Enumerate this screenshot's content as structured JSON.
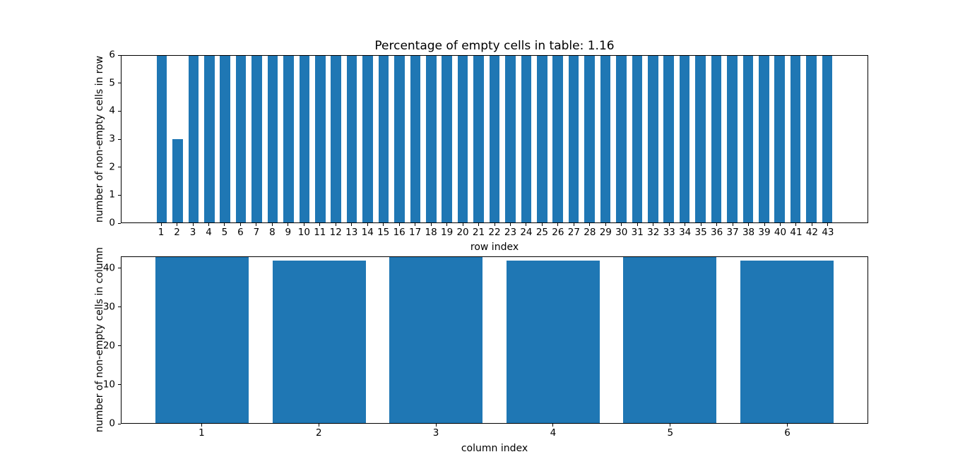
{
  "figure": {
    "background": "#ffffff",
    "bar_color": "#1f77b4",
    "axis_color": "#000000",
    "text_color": "#000000"
  },
  "chart_data": [
    {
      "type": "bar",
      "title": "Percentage of empty cells in table: 1.16",
      "xlabel": "row index",
      "ylabel": "number of non-empty cells in row",
      "categories": [
        "1",
        "2",
        "3",
        "4",
        "5",
        "6",
        "7",
        "8",
        "9",
        "10",
        "11",
        "12",
        "13",
        "14",
        "15",
        "16",
        "17",
        "18",
        "19",
        "20",
        "21",
        "22",
        "23",
        "24",
        "25",
        "26",
        "27",
        "28",
        "29",
        "30",
        "31",
        "32",
        "33",
        "34",
        "35",
        "36",
        "37",
        "38",
        "39",
        "40",
        "41",
        "42",
        "43"
      ],
      "values": [
        6,
        3,
        6,
        6,
        6,
        6,
        6,
        6,
        6,
        6,
        6,
        6,
        6,
        6,
        6,
        6,
        6,
        6,
        6,
        6,
        6,
        6,
        6,
        6,
        6,
        6,
        6,
        6,
        6,
        6,
        6,
        6,
        6,
        6,
        6,
        6,
        6,
        6,
        6,
        6,
        6,
        6,
        6
      ],
      "ylim": [
        0,
        6
      ],
      "yticks": [
        0,
        1,
        2,
        3,
        4,
        5,
        6
      ],
      "xlim": [
        -1.54,
        45.54
      ],
      "grid": false,
      "legend": "none"
    },
    {
      "type": "bar",
      "title": "",
      "xlabel": "column index",
      "ylabel": "number of non-empty cells in column",
      "categories": [
        "1",
        "2",
        "3",
        "4",
        "5",
        "6"
      ],
      "values": [
        43,
        42,
        43,
        42,
        43,
        42
      ],
      "ylim": [
        0,
        43
      ],
      "yticks": [
        0,
        10,
        20,
        30,
        40
      ],
      "xlim": [
        0.31,
        6.69
      ],
      "grid": false,
      "legend": "none"
    }
  ]
}
